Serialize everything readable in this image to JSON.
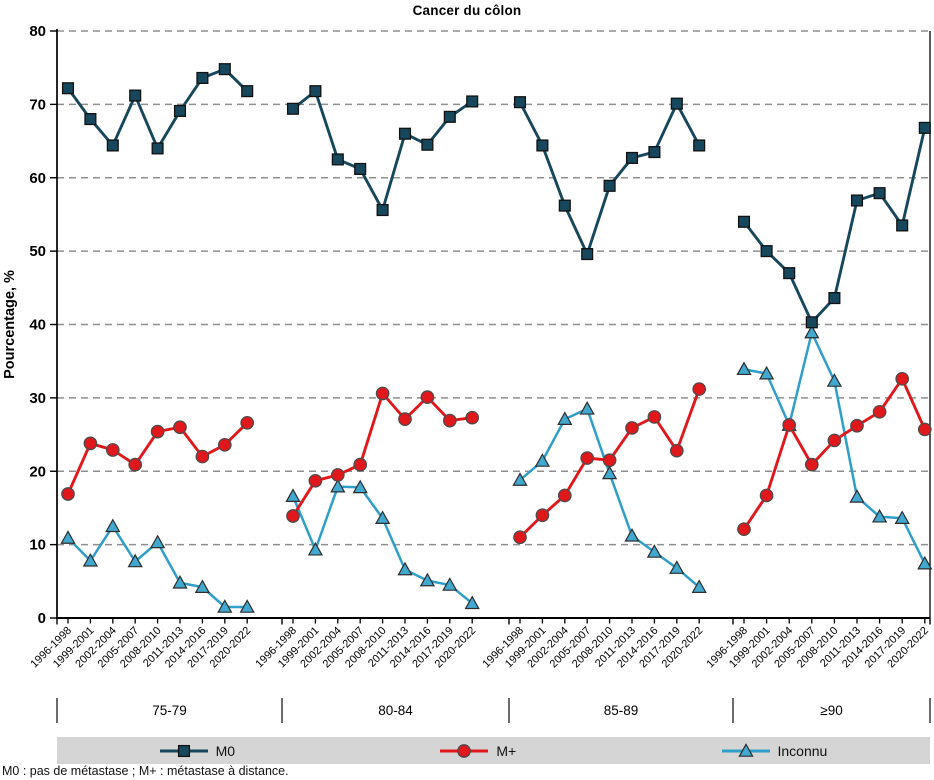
{
  "title": "Cancer du côlon",
  "footnote": "M0 : pas de métastase ; M+ : métastase à distance.",
  "colors": {
    "m0": "#17475c",
    "m_plus": "#e0181c",
    "inconnu": "#2f9ec8",
    "gridline": "#8f8f8f",
    "legend_background": "#d5d5d5"
  },
  "legend": {
    "items": [
      {
        "label": "M0",
        "marker": "square",
        "color": "#17475c"
      },
      {
        "label": "M+",
        "marker": "circle",
        "color": "#e0181c"
      },
      {
        "label": "Inconnu",
        "marker": "triangle",
        "color": "#2f9ec8"
      }
    ]
  },
  "chart_data": {
    "type": "line",
    "title": "Cancer du côlon",
    "ylabel": "Pourcentage, %",
    "ylim": [
      0,
      80
    ],
    "yticks": [
      0,
      10,
      20,
      30,
      40,
      50,
      60,
      70,
      80
    ],
    "grid": "horizontal-dashed",
    "legend_position": "bottom-bar",
    "categories": [
      "1996-1998",
      "1999-2001",
      "2002-2004",
      "2005-2007",
      "2008-2010",
      "2011-2013",
      "2014-2016",
      "2017-2019",
      "2020-2022"
    ],
    "panels": [
      {
        "age_group": "75-79",
        "series": [
          {
            "name": "M0",
            "values": [
              72.2,
              68.0,
              64.4,
              71.2,
              64.0,
              69.1,
              73.6,
              74.8,
              71.8
            ]
          },
          {
            "name": "M+",
            "values": [
              16.9,
              23.8,
              22.9,
              20.9,
              25.4,
              26.0,
              22.0,
              23.6,
              26.6
            ]
          },
          {
            "name": "Inconnu",
            "values": [
              10.9,
              7.8,
              12.5,
              7.7,
              10.3,
              4.8,
              4.2,
              1.5,
              1.5
            ]
          }
        ]
      },
      {
        "age_group": "80-84",
        "series": [
          {
            "name": "M0",
            "values": [
              69.4,
              71.8,
              62.5,
              61.2,
              55.6,
              66.0,
              64.5,
              68.3,
              70.4
            ]
          },
          {
            "name": "M+",
            "values": [
              13.9,
              18.7,
              19.5,
              20.9,
              30.6,
              27.1,
              30.1,
              26.9,
              27.3
            ]
          },
          {
            "name": "Inconnu",
            "values": [
              16.6,
              9.3,
              17.9,
              17.8,
              13.6,
              6.6,
              5.1,
              4.5,
              2.0
            ]
          }
        ]
      },
      {
        "age_group": "85-89",
        "series": [
          {
            "name": "M0",
            "values": [
              70.3,
              64.4,
              56.2,
              49.6,
              58.9,
              62.7,
              63.5,
              70.1,
              64.4
            ]
          },
          {
            "name": "M+",
            "values": [
              11.0,
              14.0,
              16.7,
              21.8,
              21.5,
              25.9,
              27.4,
              22.8,
              31.2
            ]
          },
          {
            "name": "Inconnu",
            "values": [
              18.8,
              21.4,
              27.1,
              28.5,
              19.7,
              11.2,
              9.0,
              6.8,
              4.2
            ]
          }
        ]
      },
      {
        "age_group": "≥90",
        "series": [
          {
            "name": "M0",
            "values": [
              54.0,
              50.0,
              47.0,
              40.3,
              43.6,
              56.9,
              57.9,
              53.5,
              66.8
            ]
          },
          {
            "name": "M+",
            "values": [
              12.1,
              16.7,
              26.3,
              20.9,
              24.2,
              26.2,
              28.1,
              32.6,
              25.7
            ]
          },
          {
            "name": "Inconnu",
            "values": [
              33.9,
              33.3,
              26.3,
              38.9,
              32.3,
              16.5,
              13.8,
              13.6,
              7.4
            ]
          }
        ]
      }
    ]
  }
}
